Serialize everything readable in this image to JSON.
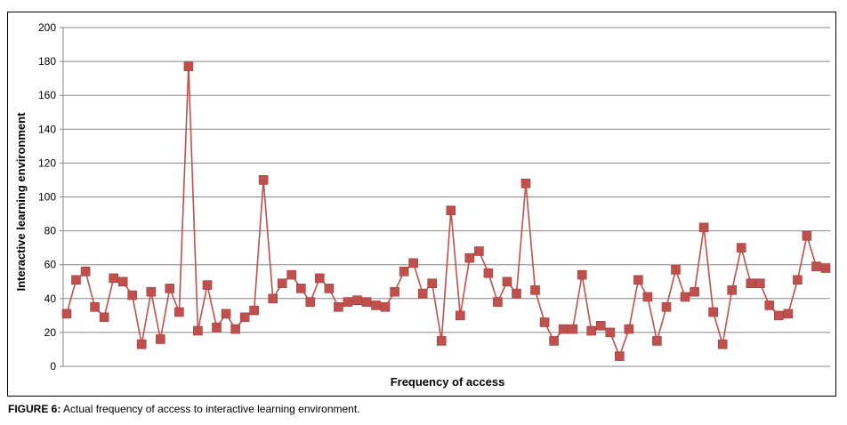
{
  "caption": {
    "label": "FIGURE 6:",
    "text": " Actual frequency of access to interactive learning environment."
  },
  "chart_data": {
    "type": "line",
    "title": "",
    "xlabel": "Frequency of access",
    "ylabel": "Interactive learning environment",
    "ylim": [
      0,
      200
    ],
    "yticks": [
      0,
      20,
      40,
      60,
      80,
      100,
      120,
      140,
      160,
      180,
      200
    ],
    "grid": true,
    "legend": "none",
    "series": [
      {
        "marker": "square",
        "color": "#c0504d",
        "values": [
          31,
          51,
          56,
          35,
          29,
          52,
          50,
          42,
          13,
          44,
          16,
          46,
          32,
          177,
          21,
          48,
          23,
          31,
          22,
          29,
          33,
          110,
          40,
          49,
          54,
          46,
          38,
          52,
          46,
          35,
          38,
          39,
          38,
          36,
          35,
          44,
          56,
          61,
          43,
          49,
          15,
          92,
          30,
          64,
          68,
          55,
          38,
          50,
          43,
          108,
          45,
          26,
          15,
          22,
          22,
          54,
          21,
          24,
          20,
          6,
          22,
          51,
          41,
          15,
          35,
          57,
          41,
          44,
          82,
          32,
          13,
          45,
          70,
          49,
          49,
          36,
          30,
          31,
          51,
          77,
          59,
          58
        ]
      }
    ]
  }
}
